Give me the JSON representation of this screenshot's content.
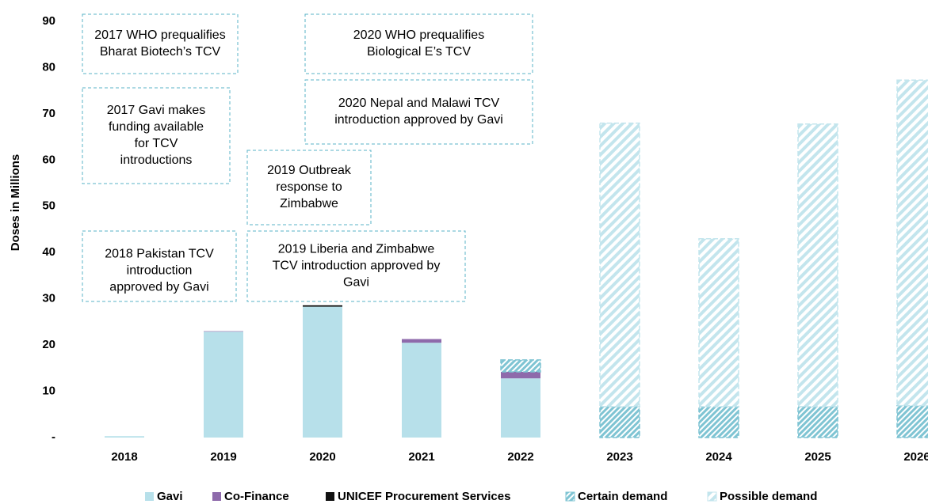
{
  "chart_data": {
    "type": "stacked_bar",
    "y_axis_label": "Doses in Millions",
    "categories": [
      "2018",
      "2019",
      "2020",
      "2021",
      "2022",
      "2023",
      "2024",
      "2025",
      "2026"
    ],
    "series": [
      {
        "name": "Gavi",
        "color": "#b7e0ea",
        "pattern": "solid",
        "values": [
          0.3,
          22.9,
          28.3,
          20.5,
          12.8,
          null,
          null,
          null,
          null
        ]
      },
      {
        "name": "Co-Finance",
        "color": "#8e6aab",
        "pattern": "solid",
        "values": [
          null,
          0.1,
          null,
          0.8,
          1.4,
          null,
          null,
          null,
          null
        ]
      },
      {
        "name": "UNICEF Procurement Services",
        "color": "#111111",
        "pattern": "solid",
        "values": [
          null,
          null,
          0.3,
          null,
          null,
          null,
          null,
          null,
          null
        ]
      },
      {
        "name": "Certain demand",
        "color": "#7fc4d3",
        "pattern": "hatch-dense",
        "values": [
          null,
          null,
          null,
          null,
          2.6,
          6.7,
          6.7,
          6.7,
          6.9
        ]
      },
      {
        "name": "Possible demand",
        "color": "#c3e5ed",
        "pattern": "hatch-light",
        "values": [
          null,
          null,
          null,
          null,
          null,
          61.3,
          36.3,
          61.1,
          70.4
        ]
      }
    ],
    "ylim": [
      0,
      90
    ],
    "yticks": [
      {
        "value": 0,
        "label": "-"
      },
      10,
      20,
      30,
      40,
      50,
      60,
      70,
      80,
      90
    ],
    "grid": false,
    "legend": "bottom",
    "annotations": [
      {
        "lines": [
          "2017 WHO prequalifies",
          "Bharat Biotech’s TCV"
        ]
      },
      {
        "lines": [
          "2017 Gavi makes",
          "funding available",
          "for TCV",
          "introductions"
        ]
      },
      {
        "lines": [
          "2018 Pakistan TCV",
          "introduction",
          "approved by Gavi"
        ]
      },
      {
        "lines": [
          "2019 Outbreak",
          "response to",
          "Zimbabwe"
        ]
      },
      {
        "lines": [
          "2019 Liberia and Zimbabwe",
          "TCV introduction approved by",
          "Gavi"
        ]
      },
      {
        "lines": [
          "2020 WHO prequalifies",
          "Biological E’s TCV"
        ]
      },
      {
        "lines": [
          "2020 Nepal and Malawi TCV",
          "introduction approved by Gavi"
        ]
      }
    ]
  }
}
